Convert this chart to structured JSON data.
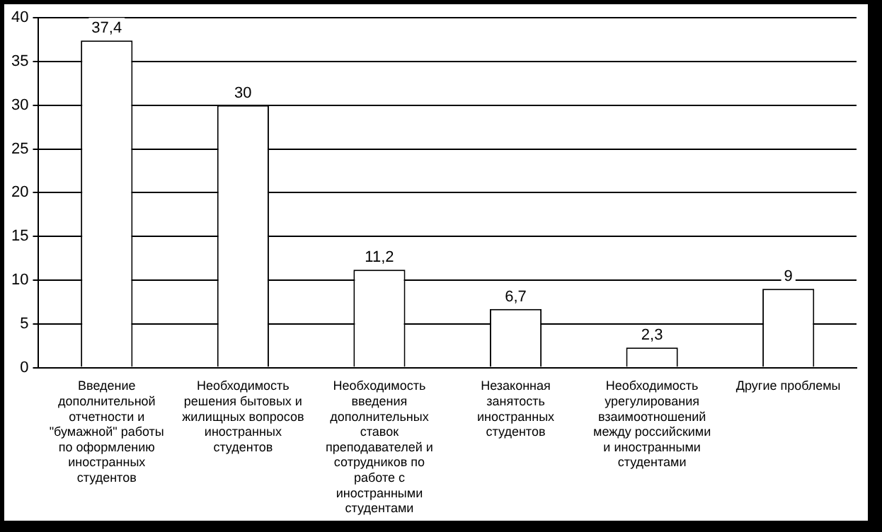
{
  "chart_data": {
    "type": "bar",
    "categories": [
      "Введение дополнительной отчетности и \"бумажной\" работы по оформлению иностранных студентов",
      "Необходимость решения бытовых и жилищных вопросов иностранных студентов",
      "Необходимость введения дополнительных ставок преподавателей и сотрудников по работе с иностранными студентами",
      "Незаконная занятость иностранных студентов",
      "Необходимость урегулирования взаимоотношений между российскими и иностранными студентами",
      "Другие проблемы"
    ],
    "values": [
      37.4,
      30,
      11.2,
      6.7,
      2.3,
      9
    ],
    "value_labels": [
      "37,4",
      "30",
      "11,2",
      "6,7",
      "2,3",
      "9"
    ],
    "color": "#ffffff",
    "ylim": [
      0,
      40
    ],
    "yticks": [
      0,
      5,
      10,
      15,
      20,
      25,
      30,
      35,
      40
    ],
    "grid": "y",
    "legend": false
  }
}
